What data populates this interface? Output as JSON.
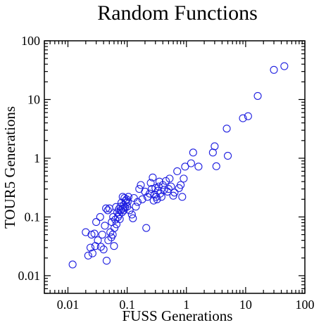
{
  "chart_data": {
    "type": "scatter",
    "title": "Random Functions",
    "xlabel": "FUSS Generations",
    "ylabel": "TOUR5 Generations",
    "xscale": "log",
    "yscale": "log",
    "xlim": [
      0.004,
      100
    ],
    "ylim": [
      0.005,
      100
    ],
    "x_ticks": [
      0.01,
      0.1,
      1,
      10,
      100
    ],
    "x_tick_labels": [
      "0.01",
      "0.1",
      "1",
      "10",
      "100"
    ],
    "y_ticks": [
      0.01,
      0.1,
      1,
      10,
      100
    ],
    "y_tick_labels": [
      "0.01",
      "0.1",
      "1",
      "10",
      "100"
    ],
    "grid": false,
    "marker": "open-circle",
    "color": "#1f1fe0",
    "points": [
      [
        0.012,
        0.0155
      ],
      [
        0.02,
        0.055
      ],
      [
        0.022,
        0.022
      ],
      [
        0.024,
        0.03
      ],
      [
        0.025,
        0.05
      ],
      [
        0.026,
        0.024
      ],
      [
        0.028,
        0.052
      ],
      [
        0.029,
        0.032
      ],
      [
        0.03,
        0.082
      ],
      [
        0.032,
        0.04
      ],
      [
        0.035,
        0.1
      ],
      [
        0.036,
        0.031
      ],
      [
        0.038,
        0.05
      ],
      [
        0.04,
        0.028
      ],
      [
        0.042,
        0.071
      ],
      [
        0.044,
        0.14
      ],
      [
        0.045,
        0.018
      ],
      [
        0.047,
        0.13
      ],
      [
        0.048,
        0.04
      ],
      [
        0.05,
        0.14
      ],
      [
        0.052,
        0.055
      ],
      [
        0.054,
        0.045
      ],
      [
        0.055,
        0.082
      ],
      [
        0.057,
        0.05
      ],
      [
        0.058,
        0.1
      ],
      [
        0.06,
        0.032
      ],
      [
        0.061,
        0.065
      ],
      [
        0.063,
        0.09
      ],
      [
        0.065,
        0.148
      ],
      [
        0.066,
        0.075
      ],
      [
        0.068,
        0.12
      ],
      [
        0.07,
        0.1
      ],
      [
        0.072,
        0.135
      ],
      [
        0.073,
        0.11
      ],
      [
        0.075,
        0.092
      ],
      [
        0.077,
        0.15
      ],
      [
        0.078,
        0.13
      ],
      [
        0.08,
        0.175
      ],
      [
        0.082,
        0.12
      ],
      [
        0.084,
        0.22
      ],
      [
        0.085,
        0.14
      ],
      [
        0.087,
        0.16
      ],
      [
        0.088,
        0.13
      ],
      [
        0.09,
        0.21
      ],
      [
        0.092,
        0.145
      ],
      [
        0.094,
        0.19
      ],
      [
        0.096,
        0.175
      ],
      [
        0.098,
        0.2
      ],
      [
        0.1,
        0.15
      ],
      [
        0.102,
        0.18
      ],
      [
        0.105,
        0.22
      ],
      [
        0.11,
        0.13
      ],
      [
        0.12,
        0.11
      ],
      [
        0.125,
        0.095
      ],
      [
        0.13,
        0.21
      ],
      [
        0.14,
        0.15
      ],
      [
        0.15,
        0.18
      ],
      [
        0.16,
        0.3
      ],
      [
        0.17,
        0.35
      ],
      [
        0.18,
        0.2
      ],
      [
        0.2,
        0.27
      ],
      [
        0.21,
        0.065
      ],
      [
        0.22,
        0.22
      ],
      [
        0.24,
        0.25
      ],
      [
        0.25,
        0.38
      ],
      [
        0.26,
        0.3
      ],
      [
        0.27,
        0.47
      ],
      [
        0.28,
        0.19
      ],
      [
        0.29,
        0.24
      ],
      [
        0.3,
        0.31
      ],
      [
        0.31,
        0.22
      ],
      [
        0.32,
        0.2
      ],
      [
        0.33,
        0.28
      ],
      [
        0.34,
        0.33
      ],
      [
        0.35,
        0.4
      ],
      [
        0.36,
        0.25
      ],
      [
        0.38,
        0.22
      ],
      [
        0.4,
        0.35
      ],
      [
        0.42,
        0.29
      ],
      [
        0.45,
        0.41
      ],
      [
        0.48,
        0.27
      ],
      [
        0.5,
        0.3
      ],
      [
        0.52,
        0.45
      ],
      [
        0.55,
        0.33
      ],
      [
        0.6,
        0.23
      ],
      [
        0.63,
        0.26
      ],
      [
        0.7,
        0.6
      ],
      [
        0.75,
        0.31
      ],
      [
        0.8,
        0.35
      ],
      [
        0.85,
        0.22
      ],
      [
        0.9,
        0.45
      ],
      [
        0.95,
        0.72
      ],
      [
        1.2,
        0.82
      ],
      [
        1.3,
        1.25
      ],
      [
        1.6,
        0.72
      ],
      [
        2.8,
        1.25
      ],
      [
        3.0,
        1.6
      ],
      [
        3.2,
        0.73
      ],
      [
        4.8,
        3.2
      ],
      [
        5.0,
        1.1
      ],
      [
        9.0,
        4.8
      ],
      [
        11.0,
        5.2
      ],
      [
        16.0,
        11.5
      ],
      [
        30.0,
        32.0
      ],
      [
        45.0,
        37.0
      ]
    ]
  }
}
